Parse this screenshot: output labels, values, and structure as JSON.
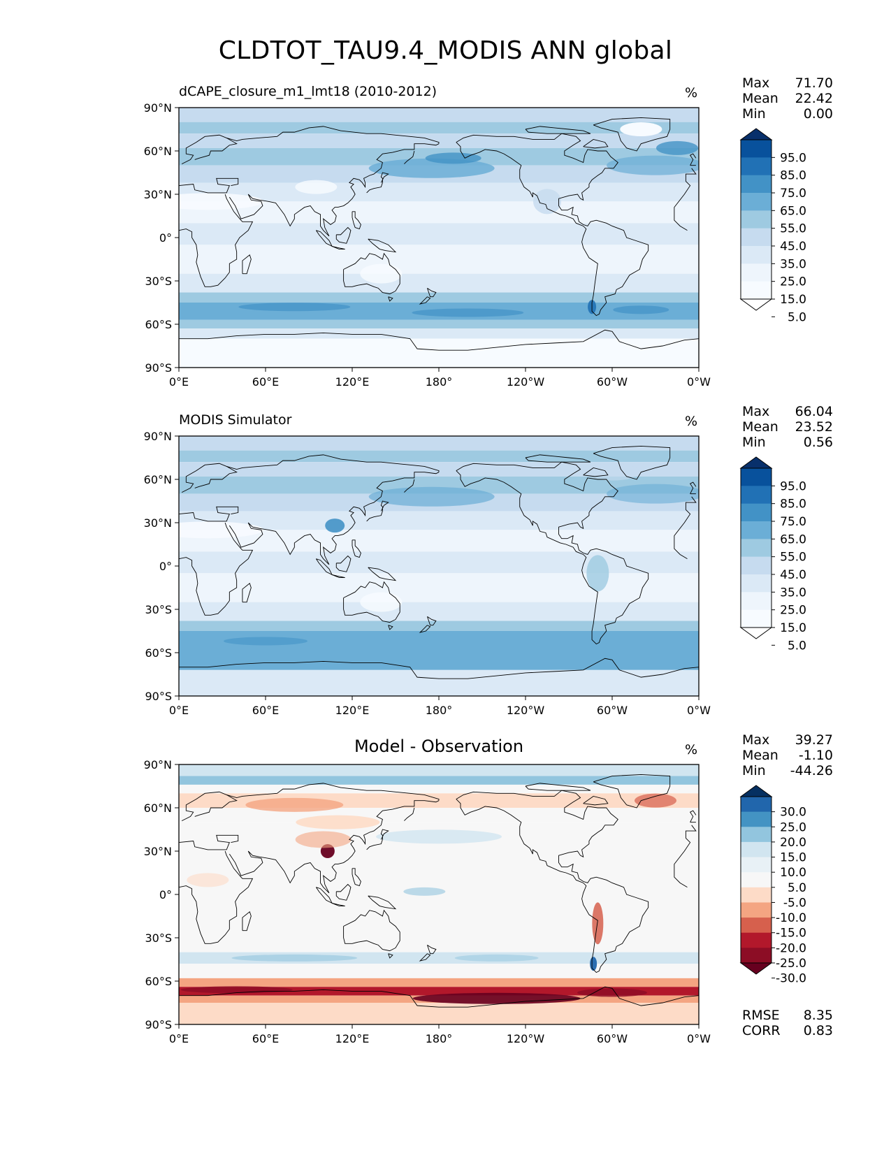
{
  "title": "CLDTOT_TAU9.4_MODIS ANN global",
  "lat_ticks": [
    "90°N",
    "60°N",
    "30°N",
    "0°",
    "30°S",
    "60°S",
    "90°S"
  ],
  "lon_ticks": [
    "0°E",
    "60°E",
    "120°E",
    "180°",
    "120°W",
    "60°W",
    "0°W"
  ],
  "panels": [
    {
      "title": "dCAPE_closure_m1_lmt18 (2010-2012)",
      "title_style": "left",
      "units": "%",
      "stats": {
        "max_label": "Max",
        "max": "71.70",
        "mean_label": "Mean",
        "mean": "22.42",
        "min_label": "Min",
        "min": "0.00"
      },
      "colorbar": {
        "labels": [
          "95.0",
          "85.0",
          "75.0",
          "65.0",
          "55.0",
          "45.0",
          "35.0",
          "25.0",
          "15.0",
          "5.0"
        ],
        "colors": [
          "#08306b",
          "#08519c",
          "#2171b5",
          "#4292c6",
          "#6baed6",
          "#9ecae1",
          "#c6dbef",
          "#dbe9f6",
          "#eef5fc",
          "#f7fbff",
          "#ffffff"
        ]
      }
    },
    {
      "title": "MODIS Simulator",
      "title_style": "left",
      "units": "%",
      "stats": {
        "max_label": "Max",
        "max": "66.04",
        "mean_label": "Mean",
        "mean": "23.52",
        "min_label": "Min",
        "min": "0.56"
      },
      "colorbar": {
        "labels": [
          "95.0",
          "85.0",
          "75.0",
          "65.0",
          "55.0",
          "45.0",
          "35.0",
          "25.0",
          "15.0",
          "5.0"
        ],
        "colors": [
          "#08306b",
          "#08519c",
          "#2171b5",
          "#4292c6",
          "#6baed6",
          "#9ecae1",
          "#c6dbef",
          "#dbe9f6",
          "#eef5fc",
          "#f7fbff",
          "#ffffff"
        ]
      }
    },
    {
      "title": "Model - Observation",
      "title_style": "center",
      "units": "%",
      "stats": {
        "max_label": "Max",
        "max": "39.27",
        "mean_label": "Mean",
        "mean": "-1.10",
        "min_label": "Min",
        "min": "-44.26"
      },
      "colorbar": {
        "labels": [
          "30.0",
          "25.0",
          "20.0",
          "15.0",
          "10.0",
          "5.0",
          "-5.0",
          "-10.0",
          "-15.0",
          "-20.0",
          "-25.0",
          "-30.0"
        ],
        "colors": [
          "#053061",
          "#2166ac",
          "#4393c3",
          "#92c5de",
          "#d1e5f0",
          "#e8f1f6",
          "#f7f7f7",
          "#fddbc7",
          "#f4a582",
          "#d6604d",
          "#b2182b",
          "#8c0d25",
          "#67001f"
        ]
      },
      "metrics": {
        "rmse_label": "RMSE",
        "rmse": "8.35",
        "corr_label": "CORR",
        "corr": "0.83"
      }
    }
  ]
}
